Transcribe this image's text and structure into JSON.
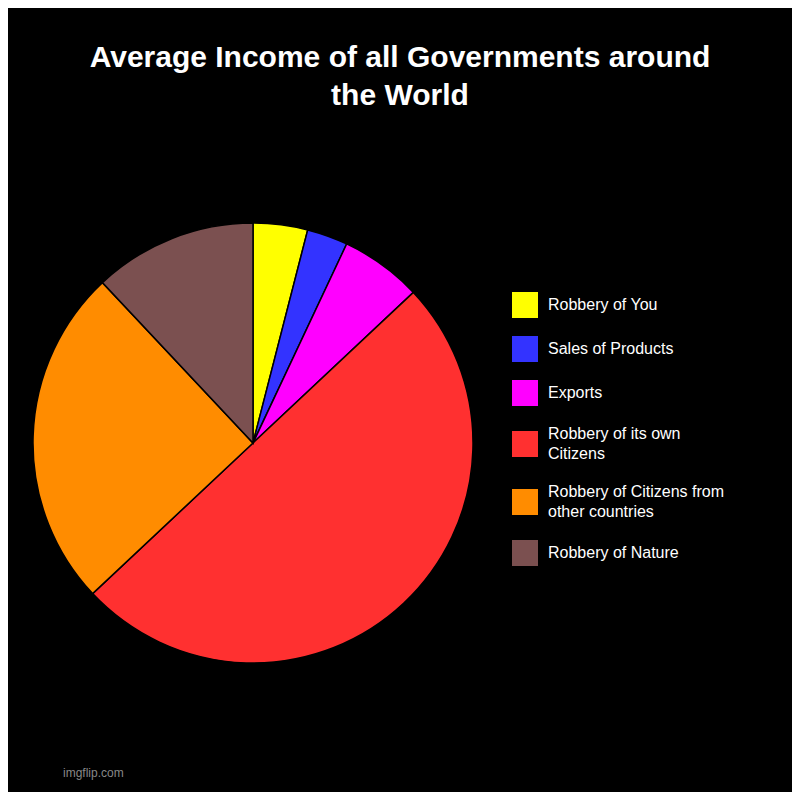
{
  "chart_data": {
    "type": "pie",
    "title": "Average Income of all Governments around\nthe World",
    "categories": [
      "Robbery of You",
      "Sales of Products",
      "Exports",
      "Robbery of its own\nCitizens",
      "Robbery of Citizens from\nother countries",
      "Robbery of Nature"
    ],
    "values": [
      4,
      3,
      6,
      50,
      25,
      12
    ],
    "colors": [
      "#FFFF00",
      "#3333FF",
      "#FF00FF",
      "#FF3030",
      "#FF8C00",
      "#7B5050"
    ],
    "annotation": "imgflip.com"
  }
}
